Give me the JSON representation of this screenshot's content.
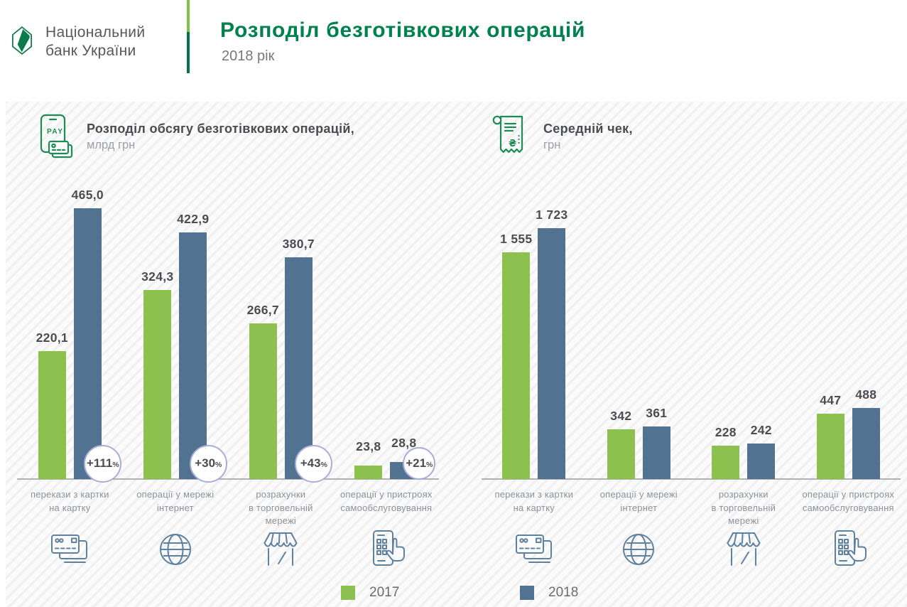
{
  "header": {
    "logo_line1": "Національний",
    "logo_line2": "банк України",
    "title": "Розподіл безготівкових операцій",
    "subtitle": "2018 рік"
  },
  "legend": [
    {
      "label": "2017",
      "color": "#8CC04F"
    },
    {
      "label": "2018",
      "color": "#527292"
    }
  ],
  "colors": {
    "title_green": "#00814D",
    "logo_green": "#0B7B4B",
    "divider_light": "#7CC24B",
    "divider_dark": "#00744A",
    "axis": "#B1B1B4",
    "badge_border": "#A9AED8",
    "value_label": "#4B4D50",
    "category_label": "#8C929A",
    "icon_steel": "#5E81A0",
    "icon_green": "#1E8C52"
  },
  "chart_data": [
    {
      "type": "bar",
      "title": "Розподіл обсягу безготівкових операцій,",
      "unit": "млрд грн",
      "title_icon": "phone-pay-icon",
      "categories": [
        "перекази з картки\nна картку",
        "операції у мережі\nінтернет",
        "розрахунки\nв торговельній\nмережі",
        "операції у пристроях\nсамообслуговування"
      ],
      "category_icons": [
        "cards-icon",
        "globe-icon",
        "shop-icon",
        "self-service-icon"
      ],
      "series": [
        {
          "name": "2017",
          "values": [
            220.1,
            324.3,
            266.7,
            23.8
          ],
          "labels": [
            "220,1",
            "324,3",
            "266,7",
            "23,8"
          ]
        },
        {
          "name": "2018",
          "values": [
            465.0,
            422.9,
            380.7,
            28.8
          ],
          "labels": [
            "465,0",
            "422,9",
            "380,7",
            "28,8"
          ]
        }
      ],
      "growth_badges": [
        "+111",
        "+30",
        "+43",
        "+21"
      ],
      "badge_suffix": "%",
      "ylim": [
        0,
        465
      ]
    },
    {
      "type": "bar",
      "title": "Середній чек,",
      "unit": "грн",
      "title_icon": "receipt-icon",
      "categories": [
        "перекази з картки\nна картку",
        "операції у мережі\nінтернет",
        "розрахунки\nв торговельній\nмережі",
        "операції у пристроях\nсамообслуговування"
      ],
      "category_icons": [
        "cards-icon",
        "globe-icon",
        "shop-icon",
        "self-service-icon"
      ],
      "series": [
        {
          "name": "2017",
          "values": [
            1555,
            342,
            228,
            447
          ],
          "labels": [
            "1 555",
            "342",
            "228",
            "447"
          ]
        },
        {
          "name": "2018",
          "values": [
            1723,
            361,
            242,
            488
          ],
          "labels": [
            "1 723",
            "361",
            "242",
            "488"
          ]
        }
      ],
      "growth_badges": null,
      "badge_suffix": "%",
      "ylim": [
        0,
        1723
      ]
    }
  ]
}
